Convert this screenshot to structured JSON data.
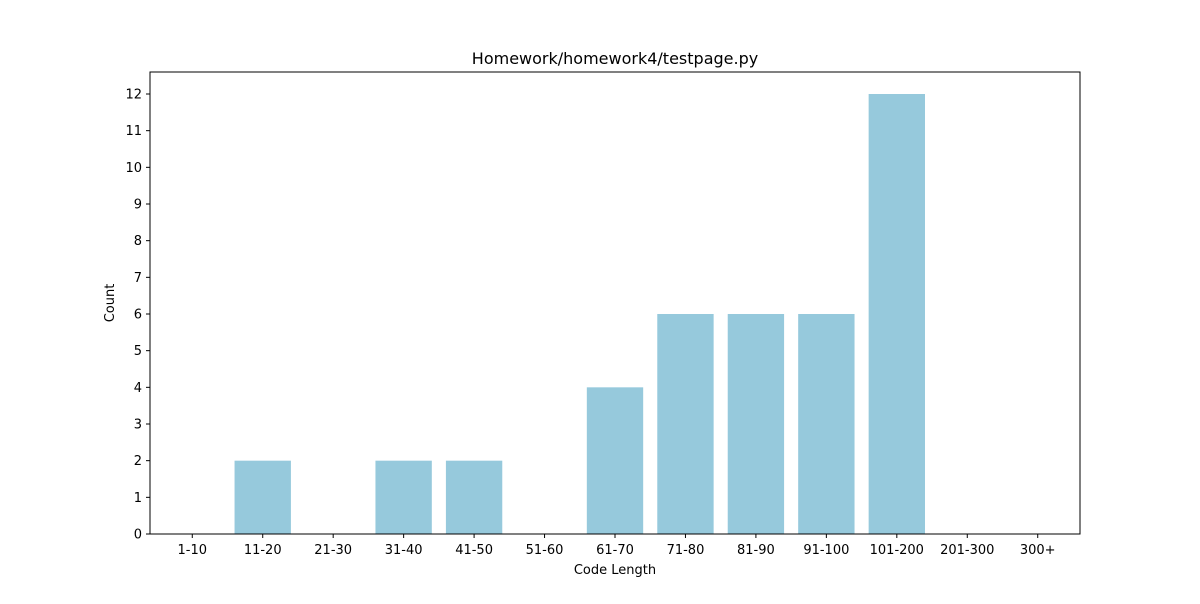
{
  "chart_data": {
    "type": "bar",
    "title": "Homework/homework4/testpage.py",
    "xlabel": "Code Length",
    "ylabel": "Count",
    "categories": [
      "1-10",
      "11-20",
      "21-30",
      "31-40",
      "41-50",
      "51-60",
      "61-70",
      "71-80",
      "81-90",
      "91-100",
      "101-200",
      "201-300",
      "300+"
    ],
    "values": [
      0,
      2,
      0,
      2,
      2,
      0,
      4,
      6,
      6,
      6,
      12,
      0,
      0
    ],
    "ylim": [
      0,
      12.6
    ],
    "yticks": [
      0,
      1,
      2,
      3,
      4,
      5,
      6,
      7,
      8,
      9,
      10,
      11,
      12
    ],
    "grid": false,
    "bar_color": "#96c9dc"
  }
}
